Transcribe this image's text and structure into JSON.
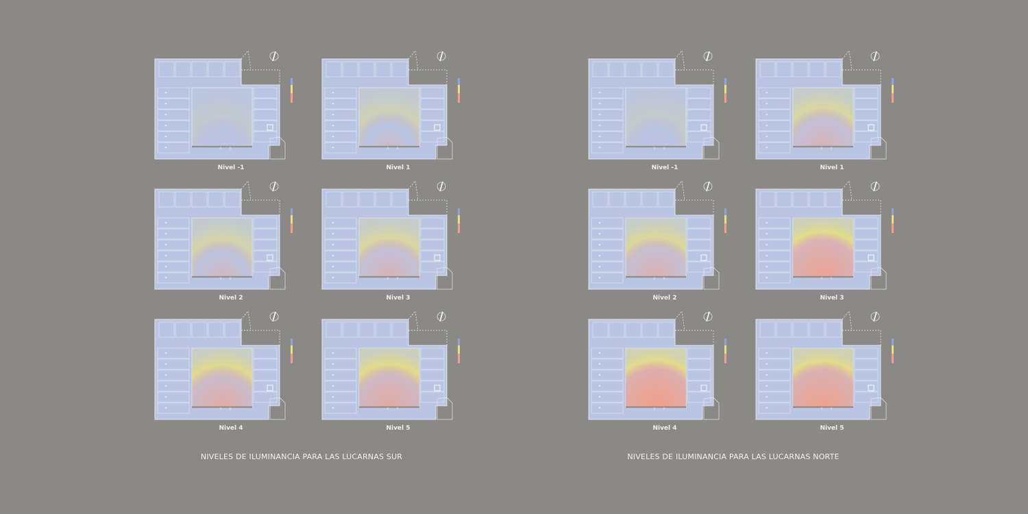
{
  "groups": [
    {
      "caption": "NIVELES DE ILUMINANCIA PARA LAS LUCARNAS SUR",
      "plans": [
        {
          "label": "Nivel -1",
          "intensity": 0.05
        },
        {
          "label": "Nivel 1",
          "intensity": 0.3
        },
        {
          "label": "Nivel 2",
          "intensity": 0.4
        },
        {
          "label": "Nivel 3",
          "intensity": 0.5
        },
        {
          "label": "Nivel 4",
          "intensity": 0.65
        },
        {
          "label": "Nivel 5",
          "intensity": 0.7
        }
      ]
    },
    {
      "caption": "NIVELES DE ILUMINANCIA PARA LAS LUCARNAS NORTE",
      "plans": [
        {
          "label": "Nivel -1",
          "intensity": 0.08
        },
        {
          "label": "Nivel 1",
          "intensity": 0.5
        },
        {
          "label": "Nivel 2",
          "intensity": 0.55
        },
        {
          "label": "Nivel 3",
          "intensity": 0.85
        },
        {
          "label": "Nivel 4",
          "intensity": 0.95
        },
        {
          "label": "Nivel 5",
          "intensity": 0.9
        }
      ]
    }
  ],
  "colors": {
    "background": "#8b8985",
    "plan_fill": "#b9c5e3",
    "low": "#e8e07a",
    "high": "#f4a089",
    "outline": "#e4e6ee"
  }
}
